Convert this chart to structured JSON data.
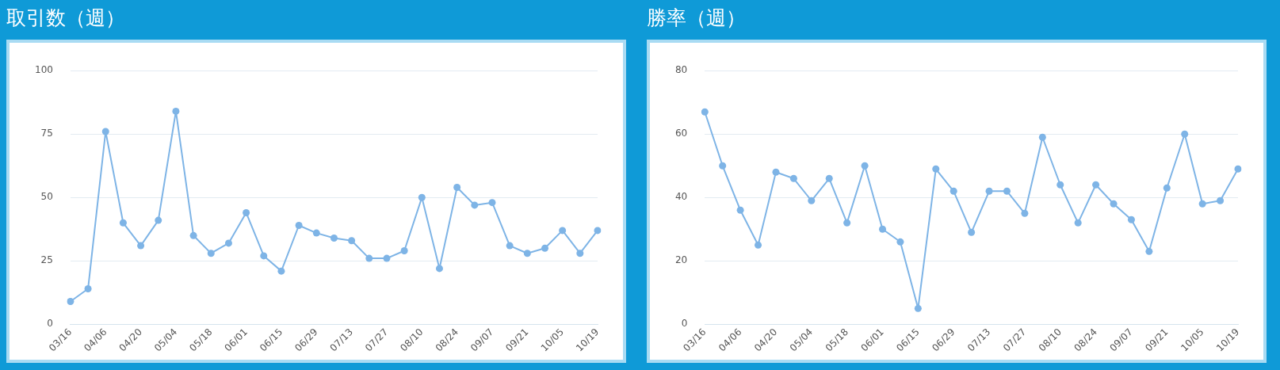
{
  "chart_data": [
    {
      "type": "line",
      "title": "取引数（週）",
      "categories": [
        "03/16",
        null,
        "04/06",
        null,
        "04/20",
        null,
        "05/04",
        null,
        "05/18",
        null,
        "06/01",
        null,
        "06/15",
        null,
        "06/29",
        null,
        "07/13",
        null,
        "07/27",
        null,
        "08/10",
        null,
        "08/24",
        null,
        "09/07",
        null,
        "09/21",
        null,
        "10/05",
        null,
        "10/19"
      ],
      "color": "#7eb4e6",
      "values": [
        9,
        14,
        76,
        40,
        31,
        41,
        84,
        35,
        28,
        32,
        44,
        27,
        21,
        39,
        36,
        34,
        33,
        26,
        26,
        29,
        50,
        22,
        54,
        47,
        48,
        31,
        28,
        30,
        37,
        28,
        37
      ],
      "ylim": [
        0,
        100
      ],
      "yticks": [
        0,
        25,
        50,
        75,
        100
      ],
      "grid": "y",
      "marker": "circle",
      "line_style": "solid",
      "legend": false
    },
    {
      "type": "line",
      "title": "勝率（週）",
      "categories": [
        "03/16",
        null,
        "04/06",
        null,
        "04/20",
        null,
        "05/04",
        null,
        "05/18",
        null,
        "06/01",
        null,
        "06/15",
        null,
        "06/29",
        null,
        "07/13",
        null,
        "07/27",
        null,
        "08/10",
        null,
        "08/24",
        null,
        "09/07",
        null,
        "09/21",
        null,
        "10/05",
        null,
        "10/19"
      ],
      "color": "#7eb4e6",
      "values": [
        67,
        50,
        36,
        25,
        48,
        46,
        39,
        46,
        32,
        50,
        30,
        26,
        5,
        49,
        42,
        29,
        42,
        42,
        35,
        59,
        44,
        32,
        44,
        38,
        33,
        23,
        43,
        60,
        38,
        39,
        49
      ],
      "ylim": [
        0,
        80
      ],
      "yticks": [
        0,
        20,
        40,
        60,
        80
      ],
      "grid": "y",
      "marker": "circle",
      "line_style": "solid",
      "legend": false
    }
  ]
}
